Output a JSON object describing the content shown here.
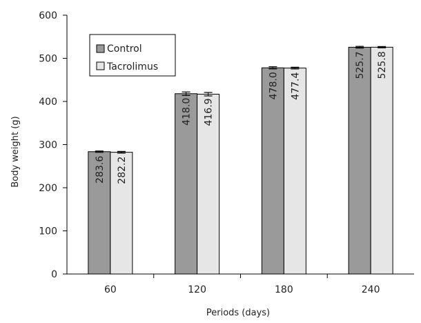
{
  "chart_data": {
    "type": "bar",
    "title": "",
    "xlabel": "Periods (days)",
    "ylabel": "Body weight (g)",
    "categories": [
      "60",
      "120",
      "180",
      "240"
    ],
    "ylim": [
      0,
      600
    ],
    "yticks": [
      0,
      100,
      200,
      300,
      400,
      500,
      600
    ],
    "grid": false,
    "legend_position": "top-left",
    "series": [
      {
        "name": "Control",
        "color": "#9a9a9a",
        "values": [
          283.6,
          418.0,
          478.0,
          525.7
        ],
        "value_labels": [
          "283.6",
          "418.0",
          "478.0",
          "525.7"
        ],
        "error": [
          1.5,
          4,
          2.5,
          2
        ]
      },
      {
        "name": "Tacrolimus",
        "color": "#e6e6e6",
        "values": [
          282.2,
          416.9,
          477.4,
          525.8
        ],
        "value_labels": [
          "282.2",
          "416.9",
          "477.4",
          "525.8"
        ],
        "error": [
          2,
          4,
          2,
          1.5
        ]
      }
    ]
  }
}
